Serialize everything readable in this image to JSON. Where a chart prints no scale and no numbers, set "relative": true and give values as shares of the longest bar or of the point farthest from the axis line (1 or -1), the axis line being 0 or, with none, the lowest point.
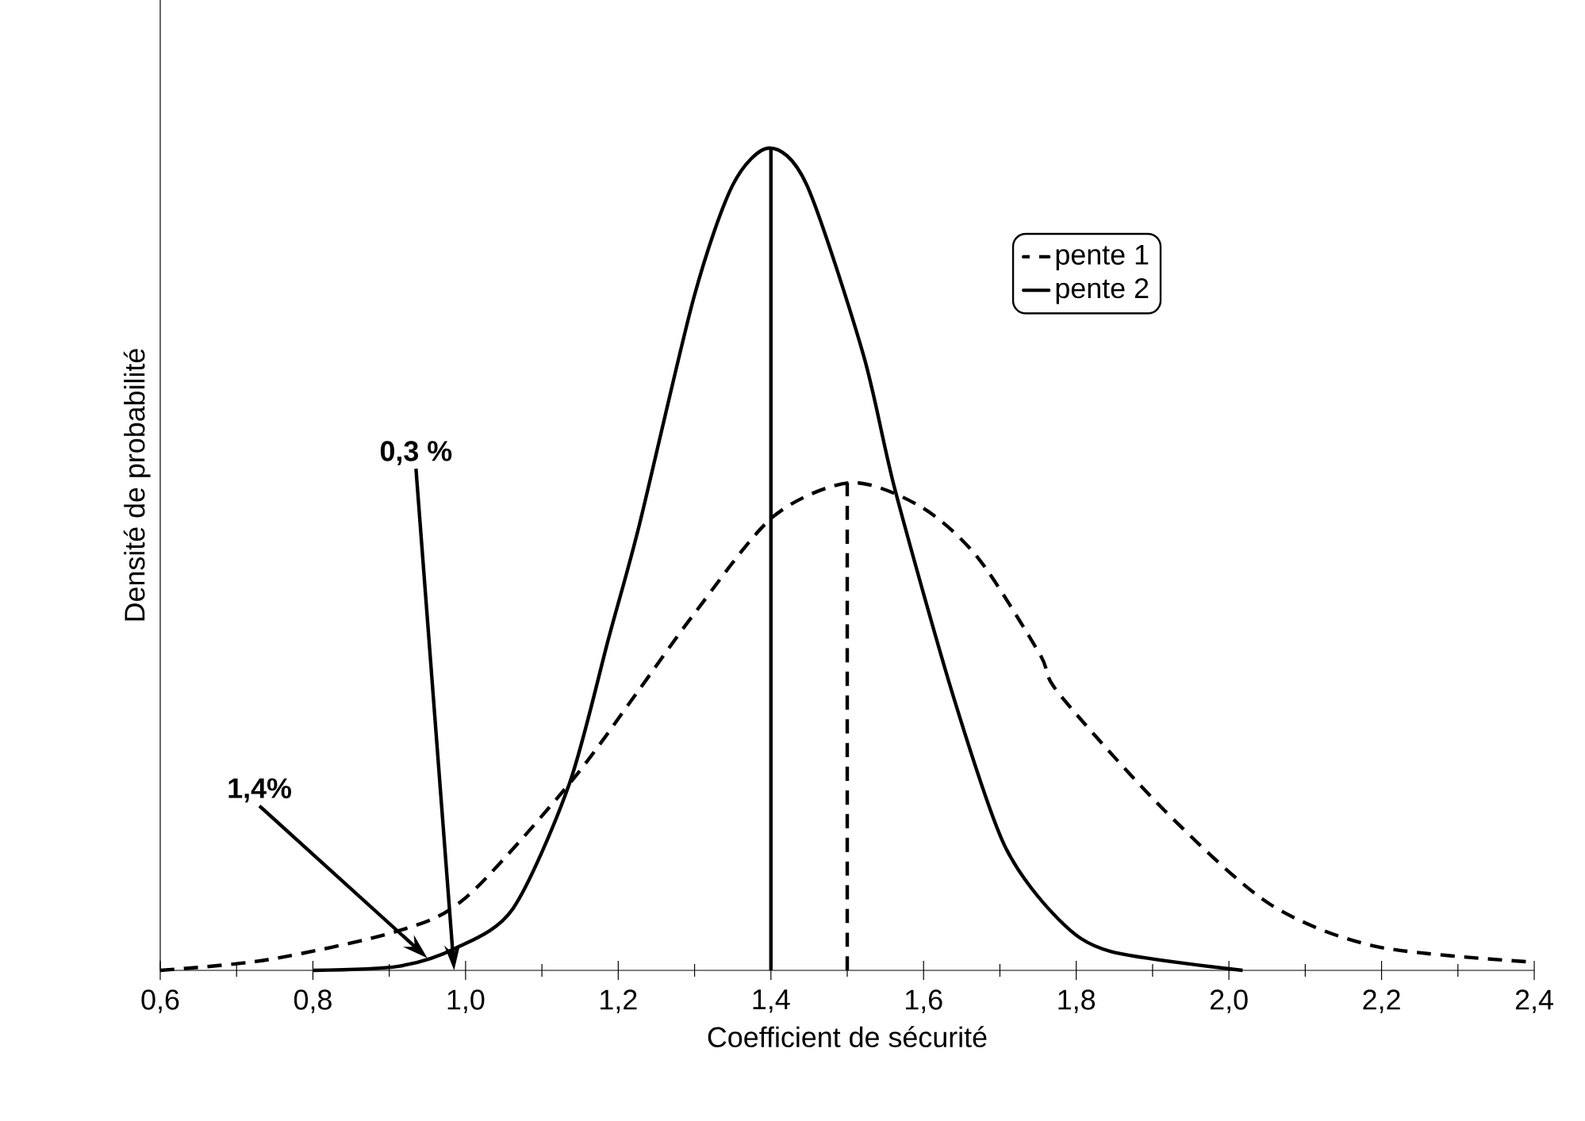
{
  "chart_data": {
    "type": "line",
    "relative": true,
    "xlabel": "Coefficient de sécurité",
    "ylabel": "Densité de probabilité",
    "xlim": [
      0.6,
      2.4
    ],
    "xticks": [
      {
        "value": 0.6,
        "label": "0,6"
      },
      {
        "value": 0.8,
        "label": "0,8"
      },
      {
        "value": 1.0,
        "label": "1,0"
      },
      {
        "value": 1.2,
        "label": "1,2"
      },
      {
        "value": 1.4,
        "label": "1,4"
      },
      {
        "value": 1.6,
        "label": "1,6"
      },
      {
        "value": 1.8,
        "label": "1,8"
      },
      {
        "value": 2.0,
        "label": "2,0"
      },
      {
        "value": 2.2,
        "label": "2,2"
      },
      {
        "value": 2.4,
        "label": "2,4"
      }
    ],
    "legend": "right",
    "series": [
      {
        "name": "pente 1",
        "color": "#000000",
        "line_style": "dashed",
        "x": [
          0.6,
          0.741,
          0.912,
          1.001,
          1.136,
          1.224,
          1.299,
          1.402,
          1.504,
          1.596,
          1.671,
          1.752,
          1.777,
          1.914,
          2.053,
          2.193,
          2.4
        ],
        "values": [
          0,
          0.013,
          0.048,
          0.089,
          0.227,
          0.337,
          0.433,
          0.551,
          0.593,
          0.564,
          0.502,
          0.385,
          0.337,
          0.196,
          0.081,
          0.029,
          0.01
        ]
      },
      {
        "name": "pente 2",
        "color": "#000000",
        "line_style": "solid",
        "x": [
          0.8,
          0.912,
          0.987,
          1.062,
          1.136,
          1.188,
          1.228,
          1.299,
          1.35,
          1.398,
          1.447,
          1.521,
          1.563,
          1.64,
          1.706,
          1.777,
          1.845,
          2.018
        ],
        "values": [
          0,
          0.005,
          0.027,
          0.075,
          0.227,
          0.406,
          0.543,
          0.818,
          0.955,
          1,
          0.955,
          0.749,
          0.583,
          0.33,
          0.152,
          0.062,
          0.023,
          0
        ]
      },
      {
        "color": "#000000",
        "line_style": "dashed",
        "x": [
          1.5,
          1.5
        ],
        "values": [
          0,
          0.593
        ]
      },
      {
        "color": "#000000",
        "line_style": "solid",
        "x": [
          1.4,
          1.4
        ],
        "values": [
          0,
          1
        ]
      }
    ],
    "annotations": [
      "0,3 %",
      "1,4%"
    ]
  }
}
